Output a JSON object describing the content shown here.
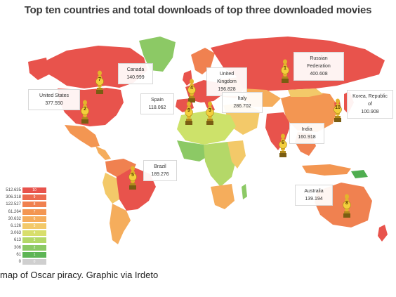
{
  "title": "Top ten countries and total downloads of top three downloaded movies",
  "caption": "map of Oscar piracy. Graphic via Irdeto",
  "colors": {
    "ocean": "#ffffff",
    "red": "#e8534c",
    "orange": "#f28c4e",
    "light_orange": "#f7a562",
    "yellow": "#f3c969",
    "lime": "#cde26a",
    "green": "#8cc965",
    "dark_green": "#4fae50",
    "grey": "#cfcfcf"
  },
  "callouts": [
    {
      "name": "Canada",
      "value": "140.999"
    },
    {
      "name": "United States",
      "value": "377.550"
    },
    {
      "name": "United Kingdom",
      "value": "196.828"
    },
    {
      "name": "Spain",
      "value": "118.062"
    },
    {
      "name": "Italy",
      "value": "286.702"
    },
    {
      "name": "Russian Federation",
      "value": "400.608"
    },
    {
      "name": "Korea, Republic of",
      "value": "100.908"
    },
    {
      "name": "India",
      "value": "160.918"
    },
    {
      "name": "Brazil",
      "value": "189.276"
    },
    {
      "name": "Australia",
      "value": "139.194"
    }
  ],
  "markers": [
    "1",
    "2",
    "3",
    "4",
    "5",
    "6",
    "7",
    "8",
    "9",
    "10"
  ],
  "legend": [
    {
      "label": "512.635",
      "color": "#e8534c",
      "rank": "10"
    },
    {
      "label": "306.318",
      "color": "#ec6b4f",
      "rank": "9"
    },
    {
      "label": "122.527",
      "color": "#f08150",
      "rank": "8"
    },
    {
      "label": "61.264",
      "color": "#f39652",
      "rank": "7"
    },
    {
      "label": "30.632",
      "color": "#f5ad5c",
      "rank": "6"
    },
    {
      "label": "6.126",
      "color": "#f3c969",
      "rank": "5"
    },
    {
      "label": "3.063",
      "color": "#d8de6b",
      "rank": "4"
    },
    {
      "label": "613",
      "color": "#b4d868",
      "rank": "3"
    },
    {
      "label": "306",
      "color": "#8cc965",
      "rank": "2"
    },
    {
      "label": "61",
      "color": "#5db555",
      "rank": "1"
    },
    {
      "label": "0",
      "color": "#cfcfcf",
      "rank": "0"
    }
  ]
}
